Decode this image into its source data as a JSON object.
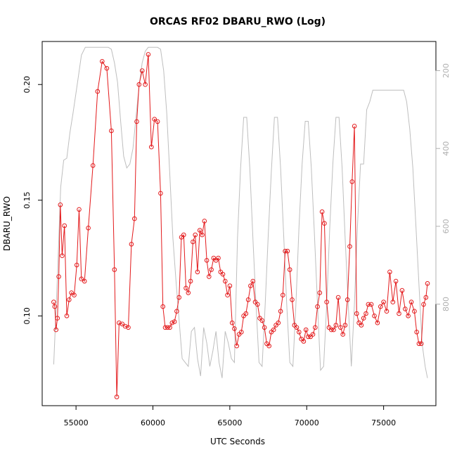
{
  "chart_data": {
    "type": "line",
    "title": "ORCAS RF02 DBARU_RWO (Log)",
    "xlabel": "UTC Seconds",
    "ylabel": "DBARU_RWO",
    "xlim": [
      52800,
      78400
    ],
    "ylim": [
      0.0612,
      0.2186
    ],
    "y2lim": [
      1061,
      125
    ],
    "x_ticks": [
      55000,
      60000,
      65000,
      70000,
      75000
    ],
    "y_ticks": [
      0.1,
      0.15,
      0.2
    ],
    "y_tick_labels": [
      "0.10",
      "0.15",
      "0.20"
    ],
    "y2_ticks": [
      200,
      400,
      600,
      800
    ],
    "grid": false,
    "series": [
      {
        "color": "#e31a1c",
        "marker": "circle",
        "axis": "left",
        "x": [
          53550,
          53620,
          53700,
          53790,
          53880,
          53980,
          54100,
          54250,
          54400,
          54550,
          54700,
          54880,
          55050,
          55200,
          55350,
          55550,
          55800,
          56100,
          56400,
          56700,
          57000,
          57300,
          57500,
          57650,
          57800,
          58000,
          58200,
          58400,
          58600,
          58800,
          58950,
          59100,
          59300,
          59500,
          59700,
          59900,
          60100,
          60300,
          60500,
          60650,
          60800,
          60950,
          61100,
          61250,
          61400,
          61550,
          61700,
          61850,
          62000,
          62150,
          62300,
          62450,
          62600,
          62750,
          62900,
          63050,
          63200,
          63350,
          63500,
          63650,
          63800,
          63950,
          64100,
          64250,
          64400,
          64550,
          64700,
          64850,
          65000,
          65150,
          65300,
          65450,
          65600,
          65750,
          65900,
          66050,
          66200,
          66350,
          66500,
          66650,
          66800,
          66950,
          67100,
          67250,
          67400,
          67550,
          67700,
          67850,
          68000,
          68150,
          68300,
          68450,
          68600,
          68750,
          68900,
          69050,
          69200,
          69350,
          69500,
          69650,
          69800,
          69950,
          70100,
          70250,
          70400,
          70550,
          70700,
          70850,
          71000,
          71150,
          71300,
          71450,
          71600,
          71750,
          71900,
          72050,
          72200,
          72350,
          72500,
          72650,
          72800,
          72950,
          73100,
          73250,
          73400,
          73550,
          73700,
          73850,
          74000,
          74200,
          74400,
          74600,
          74800,
          75000,
          75200,
          75400,
          75600,
          75800,
          76000,
          76200,
          76400,
          76600,
          76800,
          77000,
          77150,
          77300,
          77450,
          77600,
          77750,
          77850
        ],
        "y": [
          0.106,
          0.104,
          0.094,
          0.099,
          0.117,
          0.148,
          0.126,
          0.139,
          0.1,
          0.107,
          0.11,
          0.109,
          0.122,
          0.146,
          0.116,
          0.115,
          0.138,
          0.165,
          0.197,
          0.21,
          0.207,
          0.18,
          0.12,
          0.065,
          0.097,
          0.0965,
          0.0955,
          0.095,
          0.131,
          0.142,
          0.184,
          0.2,
          0.206,
          0.2,
          0.213,
          0.173,
          0.185,
          0.184,
          0.153,
          0.104,
          0.095,
          0.095,
          0.095,
          0.097,
          0.0975,
          0.102,
          0.108,
          0.134,
          0.135,
          0.112,
          0.11,
          0.115,
          0.132,
          0.135,
          0.119,
          0.137,
          0.135,
          0.141,
          0.124,
          0.117,
          0.12,
          0.125,
          0.124,
          0.125,
          0.119,
          0.118,
          0.115,
          0.109,
          0.113,
          0.097,
          0.0945,
          0.087,
          0.092,
          0.093,
          0.1,
          0.101,
          0.107,
          0.113,
          0.115,
          0.106,
          0.105,
          0.099,
          0.098,
          0.095,
          0.088,
          0.087,
          0.093,
          0.094,
          0.096,
          0.097,
          0.102,
          0.109,
          0.128,
          0.128,
          0.12,
          0.107,
          0.096,
          0.095,
          0.093,
          0.09,
          0.089,
          0.094,
          0.091,
          0.091,
          0.092,
          0.095,
          0.104,
          0.11,
          0.145,
          0.14,
          0.106,
          0.095,
          0.094,
          0.094,
          0.096,
          0.108,
          0.095,
          0.092,
          0.096,
          0.107,
          0.13,
          0.158,
          0.182,
          0.101,
          0.097,
          0.096,
          0.099,
          0.101,
          0.105,
          0.105,
          0.1,
          0.097,
          0.104,
          0.106,
          0.102,
          0.119,
          0.106,
          0.115,
          0.101,
          0.111,
          0.103,
          0.1,
          0.106,
          0.102,
          0.093,
          0.088,
          0.088,
          0.105,
          0.108,
          0.114
        ]
      },
      {
        "color": "#bebebe",
        "marker": "none",
        "axis": "right",
        "x": [
          53550,
          53800,
          54000,
          54200,
          54400,
          54600,
          54800,
          55100,
          55350,
          55600,
          55900,
          56200,
          56500,
          56800,
          57100,
          57300,
          57500,
          57700,
          57900,
          58100,
          58300,
          58500,
          58700,
          58900,
          59100,
          59300,
          59500,
          59700,
          59900,
          60100,
          60300,
          60500,
          60700,
          60900,
          61100,
          61300,
          61500,
          61700,
          61900,
          62100,
          62300,
          62500,
          62700,
          62900,
          63100,
          63300,
          63500,
          63700,
          63900,
          64100,
          64300,
          64500,
          64700,
          64900,
          65100,
          65300,
          65500,
          65700,
          65900,
          66100,
          66300,
          66500,
          66700,
          66900,
          67100,
          67300,
          67500,
          67700,
          67900,
          68100,
          68300,
          68500,
          68700,
          68900,
          69100,
          69300,
          69500,
          69700,
          69900,
          70100,
          70300,
          70500,
          70700,
          70900,
          71100,
          71300,
          71500,
          71700,
          71900,
          72100,
          72300,
          72500,
          72700,
          72900,
          73100,
          73300,
          73500,
          73700,
          73900,
          74100,
          74300,
          74500,
          74700,
          74900,
          75100,
          75300,
          75500,
          75700,
          75900,
          76100,
          76300,
          76500,
          76700,
          76900,
          77100,
          77300,
          77500,
          77700,
          77850
        ],
        "y": [
          955,
          720,
          500,
          430,
          425,
          360,
          310,
          230,
          160,
          140,
          140,
          140,
          140,
          140,
          140,
          145,
          180,
          230,
          330,
          420,
          450,
          440,
          400,
          320,
          240,
          180,
          150,
          140,
          140,
          140,
          140,
          145,
          200,
          310,
          470,
          630,
          740,
          840,
          940,
          950,
          960,
          870,
          860,
          940,
          985,
          860,
          900,
          960,
          920,
          870,
          950,
          990,
          870,
          900,
          940,
          950,
          630,
          450,
          320,
          320,
          450,
          630,
          800,
          950,
          960,
          800,
          620,
          460,
          320,
          320,
          450,
          620,
          800,
          950,
          960,
          800,
          600,
          440,
          330,
          330,
          450,
          620,
          800,
          970,
          960,
          800,
          600,
          440,
          320,
          320,
          450,
          630,
          800,
          960,
          800,
          600,
          440,
          440,
          300,
          280,
          250,
          250,
          250,
          250,
          250,
          250,
          250,
          250,
          250,
          250,
          250,
          280,
          350,
          450,
          600,
          750,
          900,
          960,
          990
        ]
      }
    ]
  }
}
